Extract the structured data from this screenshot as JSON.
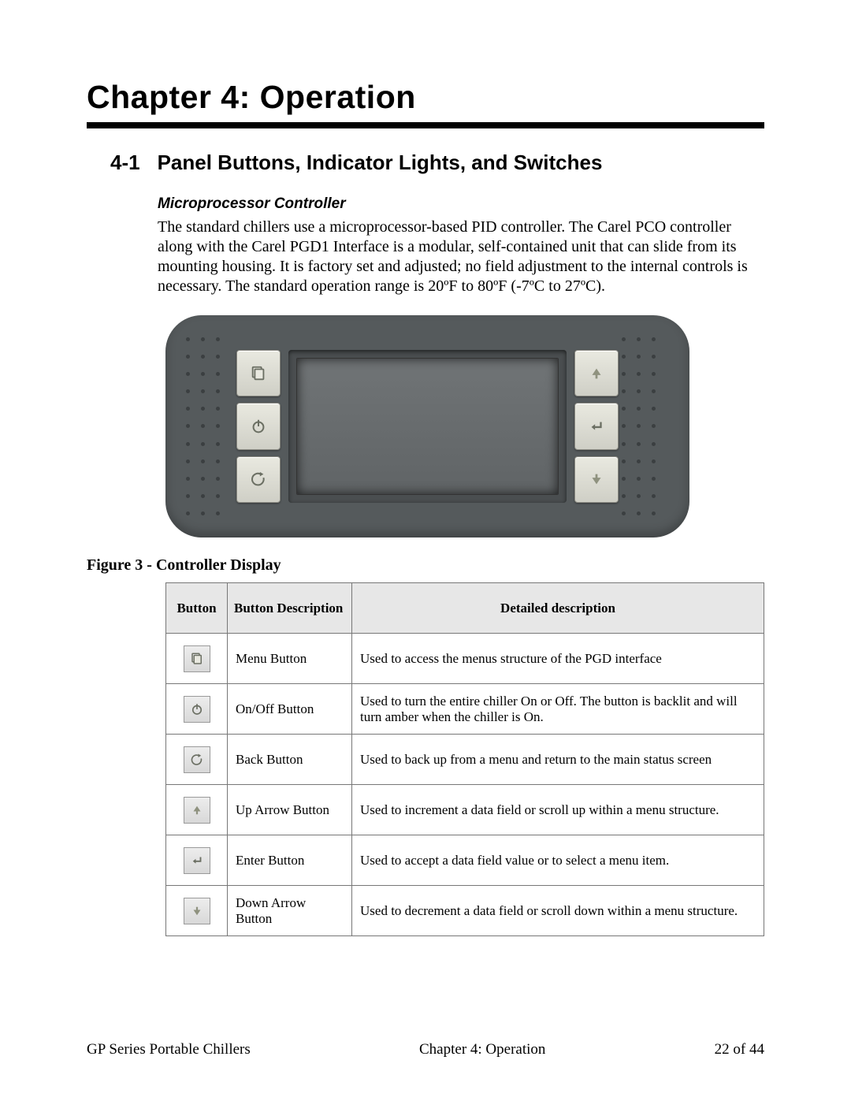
{
  "chapter_title": "Chapter 4:    Operation",
  "section": {
    "num": "4-1",
    "title": "Panel Buttons, Indicator Lights, and Switches"
  },
  "subhead": "Microprocessor Controller",
  "body": "The standard chillers use a microprocessor-based PID controller. The Carel PCO controller along with the Carel PGD1 Interface is a modular, self-contained unit that can slide from its mounting housing. It is factory set and adjusted; no field adjustment to the internal controls is necessary. The standard operation range is 20ºF to 80ºF (-7ºC to 27ºC).",
  "figure_caption": "Figure 3 - Controller Display",
  "table": {
    "headers": [
      "Button",
      "Button Description",
      "Detailed description"
    ],
    "rows": [
      {
        "icon": "menu",
        "desc": "Menu Button",
        "detail": "Used to access the menus structure of the PGD interface"
      },
      {
        "icon": "power",
        "desc": "On/Off Button",
        "detail": "Used to turn the entire chiller On or Off.  The button is backlit and will turn amber when the chiller is On."
      },
      {
        "icon": "back",
        "desc": "Back Button",
        "detail": "Used to back up from a menu and return to the main status screen"
      },
      {
        "icon": "up",
        "desc": "Up Arrow Button",
        "detail": "Used to increment a data field or scroll up within a menu structure."
      },
      {
        "icon": "enter",
        "desc": "Enter Button",
        "detail": "Used to accept a data field value or to select a menu item."
      },
      {
        "icon": "down",
        "desc": "Down Arrow Button",
        "detail": "Used to decrement a data field or scroll down within a menu structure."
      }
    ]
  },
  "controller": {
    "left_buttons": [
      "menu",
      "power",
      "back"
    ],
    "right_buttons": [
      "up",
      "enter",
      "down"
    ],
    "icon_stroke": "#6b6f63",
    "icon_stroke_alt": "#8f927f"
  },
  "footer": {
    "left": "GP Series Portable Chillers",
    "center": "Chapter 4: Operation",
    "right": "22 of 44"
  },
  "colors": {
    "controller_body": "#555a5c",
    "dot": "#3b3f41",
    "btn_face_top": "#e9e9e0",
    "btn_face_bot": "#cfcfc6",
    "table_header_bg": "#e7e7e7",
    "table_border": "#777777"
  }
}
